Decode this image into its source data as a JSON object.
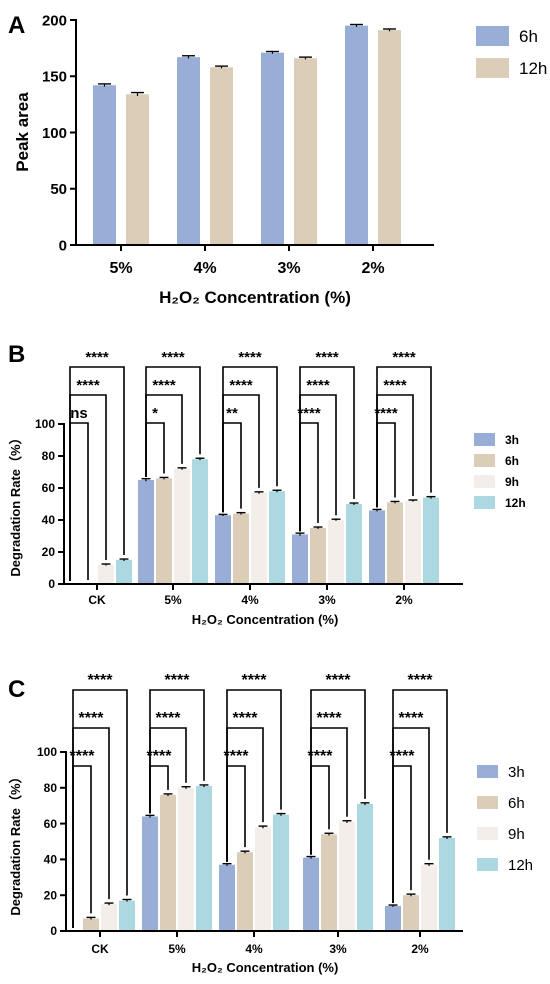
{
  "palette": {
    "blue": "#98aed7",
    "tan": "#dccdb8",
    "white": "#f3eee9",
    "light_blue": "#acd8e2",
    "axis": "#000000"
  },
  "chart_data": [
    {
      "type": "bar",
      "panel_label": "A",
      "xlabel": "H₂O₂ Concentration (%)",
      "ylabel": "Peak area",
      "categories": [
        "5%",
        "4%",
        "3%",
        "2%"
      ],
      "ylim": [
        0,
        200
      ],
      "yticks": [
        "0",
        "50",
        "100",
        "150",
        "200"
      ],
      "legend_position": "top-right",
      "series": [
        {
          "name": "6h",
          "color": "#98aed7",
          "values": [
            142,
            167,
            171,
            195
          ],
          "errors": [
            1.2,
            1.2,
            1.0,
            1.0
          ]
        },
        {
          "name": "12h",
          "color": "#dccdb8",
          "values": [
            134,
            158,
            166,
            191
          ],
          "errors": [
            1.5,
            1.0,
            1.0,
            1.0
          ]
        }
      ],
      "significance": []
    },
    {
      "type": "bar",
      "panel_label": "B",
      "xlabel": "H₂O₂ Concentration (%)",
      "ylabel": "Degradation Rate（%）",
      "categories": [
        "CK",
        "5%",
        "4%",
        "3%",
        "2%"
      ],
      "ylim": [
        0,
        100
      ],
      "yticks": [
        "0",
        "20",
        "40",
        "60",
        "80",
        "100"
      ],
      "legend_position": "top-right",
      "series": [
        {
          "name": "3h",
          "color": "#98aed7",
          "values": [
            0,
            65,
            43,
            31,
            46
          ],
          "errors": [
            0,
            0.8,
            0.5,
            0.8,
            0.6
          ]
        },
        {
          "name": "6h",
          "color": "#dccdb8",
          "values": [
            0,
            66,
            44,
            35,
            51
          ],
          "errors": [
            0,
            0.6,
            0.6,
            0.6,
            0.6
          ]
        },
        {
          "name": "9h",
          "color": "#f3eee9",
          "values": [
            12,
            72,
            57,
            40,
            52
          ],
          "errors": [
            0.5,
            0.6,
            0.6,
            0.5,
            0.5
          ]
        },
        {
          "name": "12h",
          "color": "#acd8e2",
          "values": [
            15,
            78,
            58,
            50,
            54
          ],
          "errors": [
            0.6,
            0.6,
            0.6,
            0.6,
            0.6
          ]
        }
      ],
      "significance": [
        [
          {
            "label": "ns",
            "to": 1
          },
          {
            "label": "****",
            "to": 2
          },
          {
            "label": "****",
            "to": 3
          }
        ],
        [
          {
            "label": "*",
            "to": 1
          },
          {
            "label": "****",
            "to": 2
          },
          {
            "label": "****",
            "to": 3
          }
        ],
        [
          {
            "label": "**",
            "to": 1
          },
          {
            "label": "****",
            "to": 2
          },
          {
            "label": "****",
            "to": 3
          }
        ],
        [
          {
            "label": "****",
            "to": 1
          },
          {
            "label": "****",
            "to": 2
          },
          {
            "label": "****",
            "to": 3
          }
        ],
        [
          {
            "label": "****",
            "to": 1
          },
          {
            "label": "****",
            "to": 2
          },
          {
            "label": "****",
            "to": 3
          }
        ]
      ]
    },
    {
      "type": "bar",
      "panel_label": "C",
      "xlabel": "H₂O₂ Concentration (%)",
      "ylabel": "Degradation Rate（%）",
      "categories": [
        "CK",
        "5%",
        "4%",
        "3%",
        "2%"
      ],
      "ylim": [
        0,
        100
      ],
      "yticks": [
        "0",
        "20",
        "40",
        "60",
        "80",
        "100"
      ],
      "legend_position": "right",
      "series": [
        {
          "name": "3h",
          "color": "#98aed7",
          "values": [
            0,
            64,
            37,
            41,
            14
          ],
          "errors": [
            0,
            0.6,
            0.6,
            0.6,
            0.5
          ]
        },
        {
          "name": "6h",
          "color": "#dccdb8",
          "values": [
            7,
            76,
            44,
            54,
            20
          ],
          "errors": [
            0.6,
            0.6,
            0.6,
            0.6,
            0.6
          ]
        },
        {
          "name": "9h",
          "color": "#f3eee9",
          "values": [
            15,
            80,
            58,
            61,
            37
          ],
          "errors": [
            0.6,
            0.6,
            0.6,
            0.6,
            0.6
          ]
        },
        {
          "name": "12h",
          "color": "#acd8e2",
          "values": [
            17,
            81,
            65,
            71,
            52
          ],
          "errors": [
            0.6,
            0.6,
            0.6,
            0.6,
            0.6
          ]
        }
      ],
      "significance": [
        [
          {
            "label": "****",
            "to": 1
          },
          {
            "label": "****",
            "to": 2
          },
          {
            "label": "****",
            "to": 3
          }
        ],
        [
          {
            "label": "****",
            "to": 1
          },
          {
            "label": "****",
            "to": 2
          },
          {
            "label": "****",
            "to": 3
          }
        ],
        [
          {
            "label": "****",
            "to": 1
          },
          {
            "label": "****",
            "to": 2
          },
          {
            "label": "****",
            "to": 3
          }
        ],
        [
          {
            "label": "****",
            "to": 1
          },
          {
            "label": "****",
            "to": 2
          },
          {
            "label": "****",
            "to": 3
          }
        ],
        [
          {
            "label": "****",
            "to": 1
          },
          {
            "label": "****",
            "to": 2
          },
          {
            "label": "****",
            "to": 3
          }
        ]
      ]
    }
  ]
}
